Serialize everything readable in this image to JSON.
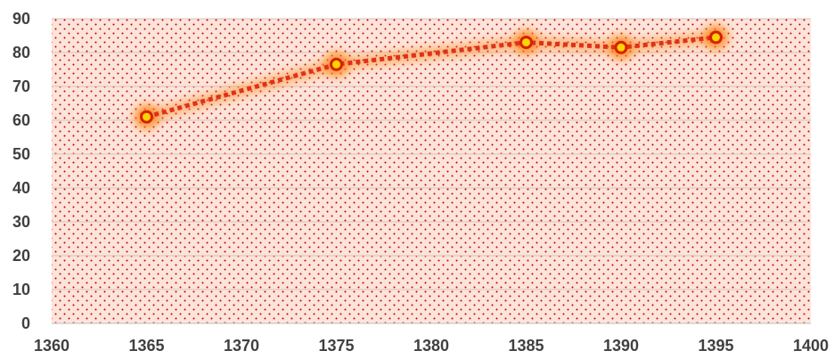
{
  "chart_data": {
    "type": "scatter",
    "title": "",
    "xlabel": "",
    "ylabel": "",
    "xlim": [
      1360,
      1400
    ],
    "ylim": [
      0,
      90
    ],
    "x_ticks": [
      1360,
      1365,
      1370,
      1375,
      1380,
      1385,
      1390,
      1395,
      1400
    ],
    "y_ticks": [
      0,
      10,
      20,
      30,
      40,
      50,
      60,
      70,
      80,
      90
    ],
    "grid": true,
    "legend": "none",
    "series": [
      {
        "x": [
          1365,
          1375,
          1385,
          1390,
          1395
        ],
        "y": [
          61,
          76.5,
          83,
          81.5,
          84.5
        ]
      }
    ],
    "colors": {
      "plot_background": "#fde4da",
      "dot_pattern": "#c00000",
      "gridline": "#d9c4bc",
      "line": "#e0301e",
      "marker_fill": "#ffd400",
      "marker_edge": "#d62000",
      "glow": "#ff8a1e"
    }
  }
}
